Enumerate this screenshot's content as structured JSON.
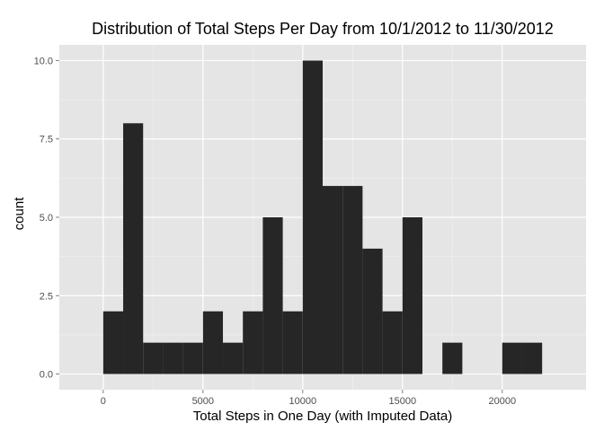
{
  "chart_data": {
    "type": "bar",
    "title": "Distribution of Total Steps Per Day from 10/1/2012 to 11/30/2012",
    "xlabel": "Total Steps in One Day (with Imputed Data)",
    "ylabel": "count",
    "bin_width": 1000,
    "x_ticks": [
      {
        "value": 0,
        "label": "0"
      },
      {
        "value": 5000,
        "label": "5000"
      },
      {
        "value": 10000,
        "label": "10000"
      },
      {
        "value": 15000,
        "label": "15000"
      },
      {
        "value": 20000,
        "label": "20000"
      }
    ],
    "y_ticks": [
      {
        "value": 0,
        "label": "0.0"
      },
      {
        "value": 2.5,
        "label": "2.5"
      },
      {
        "value": 5,
        "label": "5.0"
      },
      {
        "value": 7.5,
        "label": "7.5"
      },
      {
        "value": 10,
        "label": "10.0"
      }
    ],
    "xlim": [
      -2200,
      24200
    ],
    "ylim": [
      -0.5,
      10.5
    ],
    "grid": true,
    "bins": [
      {
        "start": 0,
        "end": 1000,
        "count": 2
      },
      {
        "start": 1000,
        "end": 2000,
        "count": 8
      },
      {
        "start": 2000,
        "end": 3000,
        "count": 1
      },
      {
        "start": 3000,
        "end": 4000,
        "count": 1
      },
      {
        "start": 4000,
        "end": 5000,
        "count": 1
      },
      {
        "start": 5000,
        "end": 6000,
        "count": 2
      },
      {
        "start": 6000,
        "end": 7000,
        "count": 1
      },
      {
        "start": 7000,
        "end": 8000,
        "count": 2
      },
      {
        "start": 8000,
        "end": 9000,
        "count": 5
      },
      {
        "start": 9000,
        "end": 10000,
        "count": 2
      },
      {
        "start": 10000,
        "end": 11000,
        "count": 10
      },
      {
        "start": 11000,
        "end": 12000,
        "count": 6
      },
      {
        "start": 12000,
        "end": 13000,
        "count": 6
      },
      {
        "start": 13000,
        "end": 14000,
        "count": 4
      },
      {
        "start": 14000,
        "end": 15000,
        "count": 2
      },
      {
        "start": 15000,
        "end": 16000,
        "count": 5
      },
      {
        "start": 16000,
        "end": 17000,
        "count": 0
      },
      {
        "start": 17000,
        "end": 18000,
        "count": 1
      },
      {
        "start": 18000,
        "end": 19000,
        "count": 0
      },
      {
        "start": 19000,
        "end": 20000,
        "count": 0
      },
      {
        "start": 20000,
        "end": 21000,
        "count": 1
      },
      {
        "start": 21000,
        "end": 22000,
        "count": 1
      }
    ],
    "colors": {
      "panel_background": "#e5e5e5",
      "major_grid": "#ffffff",
      "minor_grid": "#f2f2f2",
      "bar_fill": "#262626",
      "tick_text": "#4d4d4d",
      "tick_mark": "#7f7f7f"
    }
  }
}
